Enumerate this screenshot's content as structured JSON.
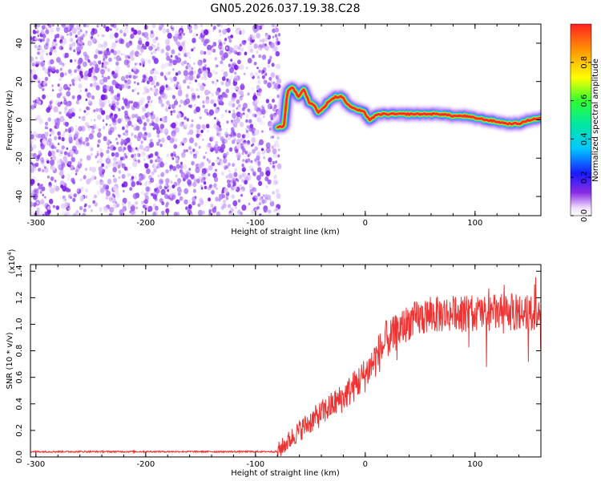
{
  "title": "GN05.2026.037.19.38.C28",
  "chart_data": [
    {
      "type": "heatmap",
      "xlabel": "Height of straight line (km)",
      "ylabel": "Frequency (Hz)",
      "xlim": [
        -305,
        160
      ],
      "ylim": [
        -50,
        50
      ],
      "xticks": [
        -300,
        -200,
        -100,
        0,
        100
      ],
      "yticks": [
        -40,
        -20,
        0,
        20,
        40
      ],
      "noise_region": {
        "x_from": -305,
        "x_to": -78
      },
      "ridge": {
        "x": [
          -80,
          -74,
          -71,
          -66,
          -61,
          -56,
          -51,
          -47,
          -43,
          -38,
          -33,
          -27,
          -21,
          -16,
          -11,
          -6,
          -1,
          4,
          9,
          14,
          20,
          30,
          40,
          50,
          60,
          70,
          80,
          90,
          100,
          110,
          120,
          130,
          140,
          150,
          160
        ],
        "y": [
          -4,
          -3,
          15,
          17,
          12,
          16,
          9,
          8,
          4,
          6,
          10,
          12,
          12,
          8,
          6,
          5,
          4,
          0,
          2,
          3,
          3,
          3,
          3,
          3,
          3,
          3,
          2,
          2,
          1,
          0,
          -1,
          -2,
          -2,
          0,
          1
        ]
      },
      "colorbar": {
        "label": "Normalized spectral amplitude",
        "range": [
          0,
          1
        ],
        "ticks": [
          0.0,
          0.2,
          0.4,
          0.6,
          0.8
        ]
      }
    },
    {
      "type": "line",
      "xlabel": "Height of straight line (km)",
      "ylabel": "SNR (10 * v/v)",
      "exponent_label": "(x10",
      "exponent_power": "4",
      "xlim": [
        -305,
        160
      ],
      "ylim": [
        0,
        1.45
      ],
      "xticks": [
        -300,
        -200,
        -100,
        0,
        100
      ],
      "yticks": [
        0.0,
        0.2,
        0.4,
        0.6,
        0.8,
        1.0,
        1.2,
        1.4
      ],
      "series": [
        {
          "name": "SNR",
          "color": "#ee3333",
          "x": [
            -305,
            -80,
            -60,
            -40,
            -20,
            0,
            20,
            40,
            60,
            80,
            100,
            120,
            140,
            160
          ],
          "y": [
            0.04,
            0.04,
            0.2,
            0.33,
            0.45,
            0.62,
            0.88,
            1.02,
            1.07,
            1.08,
            1.08,
            1.09,
            1.09,
            1.08
          ]
        }
      ]
    }
  ]
}
